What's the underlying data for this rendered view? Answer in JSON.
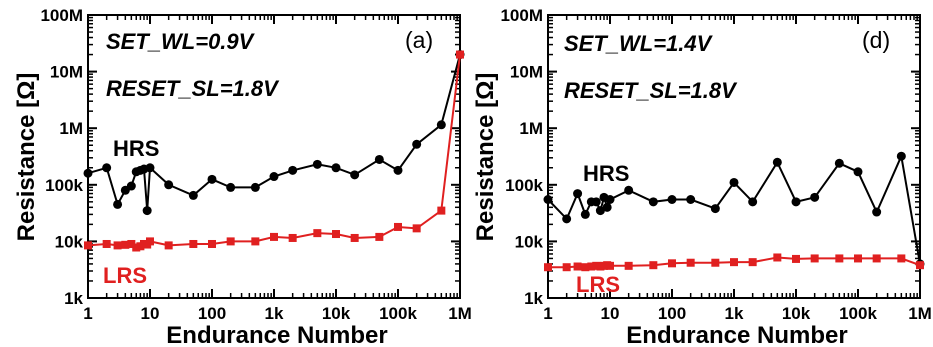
{
  "chart_data": [
    {
      "type": "line",
      "panel_label": "(a)",
      "annotations": [
        "SET_WL=0.9V",
        "RESET_SL=1.8V"
      ],
      "xlabel": "Endurance Number",
      "ylabel": "Resistance [Ω]",
      "xscale": "log",
      "yscale": "log",
      "xlim": [
        1,
        1000000
      ],
      "ylim": [
        1000,
        100000000
      ],
      "x_ticks": [
        "1",
        "10",
        "100",
        "1k",
        "10k",
        "100k",
        "1M"
      ],
      "y_ticks": [
        "1k",
        "10k",
        "100k",
        "1M",
        "10M",
        "100M"
      ],
      "series": [
        {
          "name": "HRS",
          "color": "#000000",
          "marker": "circle",
          "x": [
            1,
            2,
            3,
            4,
            5,
            6,
            7,
            8,
            9,
            10,
            20,
            50,
            100,
            200,
            500,
            1000,
            2000,
            5000,
            10000,
            20000,
            50000,
            100000,
            200000,
            500000,
            1000000
          ],
          "y": [
            160000,
            200000,
            45000,
            80000,
            95000,
            170000,
            180000,
            190000,
            35000,
            200000,
            100000,
            65000,
            125000,
            90000,
            90000,
            140000,
            180000,
            230000,
            200000,
            150000,
            280000,
            180000,
            520000,
            1150000,
            20000000
          ]
        },
        {
          "name": "LRS",
          "color": "#e02020",
          "marker": "square",
          "x": [
            1,
            2,
            3,
            4,
            5,
            6,
            7,
            8,
            9,
            10,
            20,
            50,
            100,
            200,
            500,
            1000,
            2000,
            5000,
            10000,
            20000,
            50000,
            100000,
            200000,
            500000,
            1000000
          ],
          "y": [
            8500,
            9000,
            8500,
            8700,
            9000,
            7800,
            8200,
            9000,
            8800,
            10000,
            8500,
            9000,
            9000,
            10000,
            10000,
            12000,
            11500,
            14000,
            13500,
            11500,
            12000,
            18000,
            17000,
            35000,
            20000000
          ]
        }
      ]
    },
    {
      "type": "line",
      "panel_label": "(d)",
      "annotations": [
        "SET_WL=1.4V",
        "RESET_SL=1.8V"
      ],
      "xlabel": "Endurance Number",
      "ylabel": "Resistance [Ω]",
      "xscale": "log",
      "yscale": "log",
      "xlim": [
        1,
        1000000
      ],
      "ylim": [
        1000,
        100000000
      ],
      "x_ticks": [
        "1",
        "10",
        "100",
        "1k",
        "10k",
        "100k",
        "1M"
      ],
      "y_ticks": [
        "1k",
        "10k",
        "100k",
        "1M",
        "10M",
        "100M"
      ],
      "series": [
        {
          "name": "HRS",
          "color": "#000000",
          "marker": "circle",
          "x": [
            1,
            2,
            3,
            4,
            5,
            6,
            7,
            8,
            9,
            10,
            20,
            50,
            100,
            200,
            500,
            1000,
            2000,
            5000,
            10000,
            20000,
            50000,
            100000,
            200000,
            500000,
            1000000
          ],
          "y": [
            55000,
            25000,
            70000,
            30000,
            50000,
            50000,
            35000,
            60000,
            40000,
            55000,
            80000,
            50000,
            55000,
            55000,
            38000,
            110000,
            50000,
            250000,
            50000,
            60000,
            240000,
            170000,
            33000,
            320000,
            4000
          ]
        },
        {
          "name": "LRS",
          "color": "#e02020",
          "marker": "square",
          "x": [
            1,
            2,
            3,
            4,
            5,
            6,
            7,
            8,
            9,
            10,
            20,
            50,
            100,
            200,
            500,
            1000,
            2000,
            5000,
            10000,
            20000,
            50000,
            100000,
            200000,
            500000,
            1000000
          ],
          "y": [
            3500,
            3500,
            3600,
            3500,
            3600,
            3700,
            3600,
            3700,
            3800,
            3700,
            3700,
            3800,
            4100,
            4200,
            4200,
            4300,
            4300,
            5200,
            4900,
            5000,
            5000,
            5000,
            5000,
            5000,
            3800
          ]
        }
      ]
    }
  ]
}
